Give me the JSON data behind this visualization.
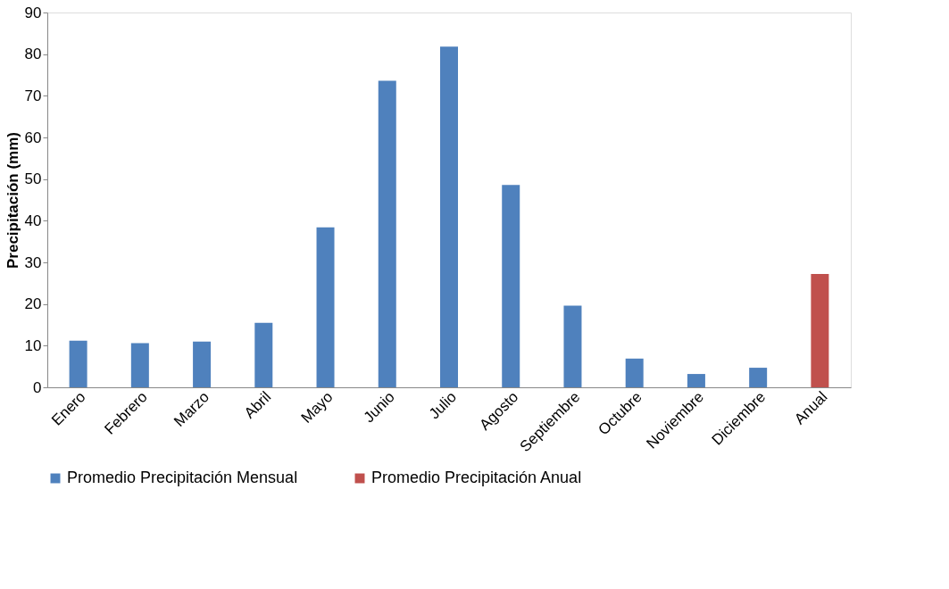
{
  "chart_data": {
    "type": "bar",
    "ylabel": "Precipitación (mm)",
    "categories": [
      "Enero",
      "Febrero",
      "Marzo",
      "Abril",
      "Mayo",
      "Junio",
      "Julio",
      "Agosto",
      "Septiembre",
      "Octubre",
      "Noviembre",
      "Diciembre",
      "Anual"
    ],
    "series": [
      {
        "name": "Promedio Precipitación Mensual",
        "color": "#4f81bd",
        "values": [
          11.2,
          10.6,
          11.0,
          15.5,
          38.4,
          73.6,
          81.8,
          48.6,
          19.6,
          6.9,
          3.2,
          4.7,
          null
        ]
      },
      {
        "name": "Promedio Precipitación Anual",
        "color": "#c0504d",
        "values": [
          null,
          null,
          null,
          null,
          null,
          null,
          null,
          null,
          null,
          null,
          null,
          null,
          27.2
        ]
      }
    ],
    "ylim": [
      0,
      90
    ],
    "yticks": [
      0,
      10,
      20,
      30,
      40,
      50,
      60,
      70,
      80,
      90
    ],
    "grid": false,
    "legend": "bottom"
  }
}
